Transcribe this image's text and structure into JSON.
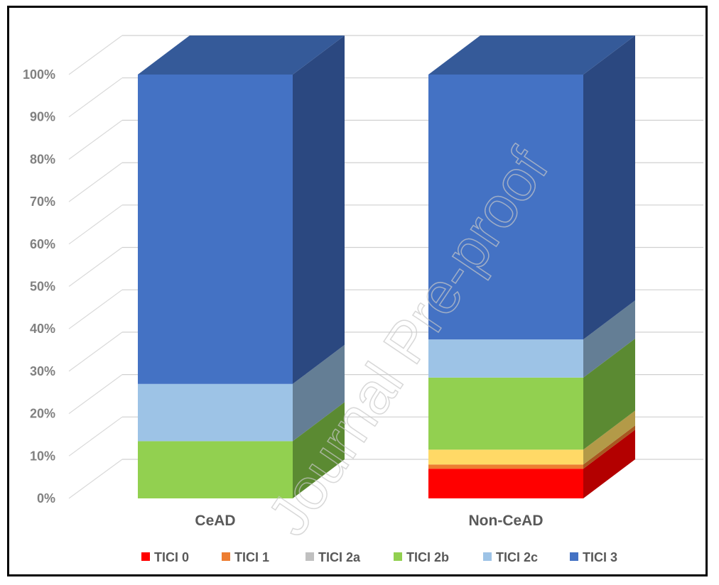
{
  "chart_data": {
    "type": "bar",
    "stacked": true,
    "percent": true,
    "three_d": true,
    "categories": [
      "CeAD",
      "Non-CeAD"
    ],
    "series": [
      {
        "name": "TICI 0",
        "color": "#ff0000",
        "side_color": "#b30000",
        "values": [
          0,
          7
        ]
      },
      {
        "name": "TICI 1",
        "color": "#ed7d31",
        "side_color": "#a85820",
        "values": [
          0,
          1
        ]
      },
      {
        "name": "TICI 2a",
        "color": "#ffd966",
        "side_color": "#b39a48",
        "values": [
          0,
          3.5
        ]
      },
      {
        "name": "TICI 2b",
        "color": "#92d050",
        "side_color": "#5b8a32",
        "values": [
          13.5,
          17
        ]
      },
      {
        "name": "TICI 2c",
        "color": "#9dc3e6",
        "side_color": "#647e95",
        "values": [
          13.5,
          9
        ]
      },
      {
        "name": "TICI 3",
        "color": "#4472c4",
        "side_color": "#2b4880",
        "top_color": "#355a99",
        "values": [
          73,
          62.5
        ]
      }
    ],
    "legend_swatch_colors": [
      "#ff0000",
      "#ed7d31",
      "#c0c0c0",
      "#92d050",
      "#9dc3e6",
      "#4472c4"
    ],
    "y_ticks": [
      "0%",
      "10%",
      "20%",
      "30%",
      "40%",
      "50%",
      "60%",
      "70%",
      "80%",
      "90%",
      "100%"
    ],
    "ylim": [
      0,
      100
    ],
    "grid": true,
    "legend_position": "bottom"
  },
  "watermark": "Journal Pre-proof"
}
